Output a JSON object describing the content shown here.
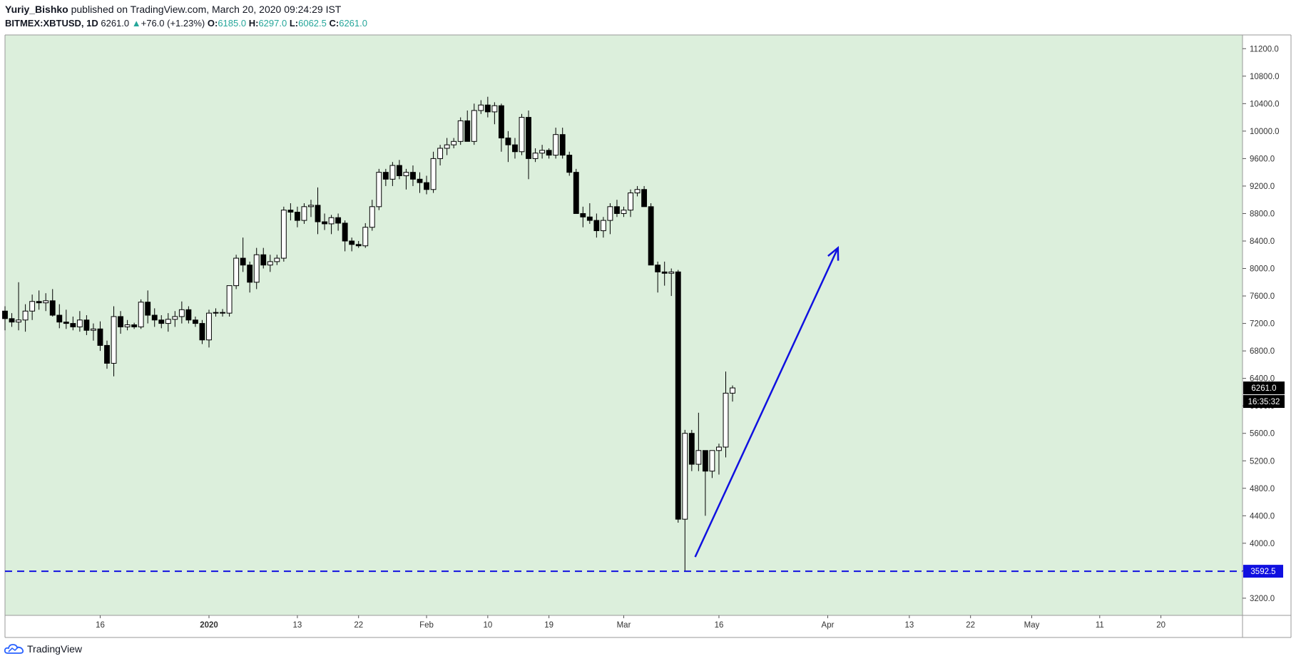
{
  "header": {
    "author": "Yuriy_Bishko",
    "published_text": "published on TradingView.com, March 20, 2020 09:24:29 IST",
    "symbol": "BITMEX:XBTUSD, 1D",
    "last": "6261.0",
    "arrow": "▲",
    "change": "+76.0 (+1.23%)",
    "o_label": "O:",
    "o_value": "6185.0",
    "h_label": "H:",
    "h_value": "6297.0",
    "l_label": "L:",
    "l_value": "6062.5",
    "c_label": "C:",
    "c_value": "6261.0"
  },
  "footer": {
    "brand": "TradingView",
    "logo_icon": "tradingview-cloud-icon"
  },
  "colors": {
    "background": "#dcefdc",
    "bull": "#ffffff",
    "bear": "#000000",
    "support": "#1010e0",
    "arrow": "#1010e0",
    "price_label": "#000000"
  },
  "chart_data": {
    "type": "candlestick",
    "symbol": "BITMEX:XBTUSD",
    "interval": "1D",
    "y_ticks": [
      "3200.0",
      "3600.0",
      "4000.0",
      "4400.0",
      "4800.0",
      "5200.0",
      "5600.0",
      "6000.0",
      "6400.0",
      "6800.0",
      "7200.0",
      "7600.0",
      "8000.0",
      "8400.0",
      "8800.0",
      "9200.0",
      "9600.0",
      "10000.0",
      "10400.0",
      "10800.0",
      "11200.0"
    ],
    "ylim": [
      2950,
      11400
    ],
    "x_tick_labels": [
      "16",
      "2020",
      "13",
      "22",
      "Feb",
      "10",
      "19",
      "Mar",
      "16",
      "Apr",
      "13",
      "22",
      "May",
      "11",
      "20"
    ],
    "x_ticks_day_index": [
      0,
      16,
      29,
      38,
      48,
      57,
      66,
      77,
      91,
      107,
      119,
      128,
      137,
      147,
      156
    ],
    "x_range_day_index": [
      -14,
      168
    ],
    "candles": [
      {
        "d": -14,
        "o": 7380,
        "h": 7450,
        "l": 7100,
        "c": 7270
      },
      {
        "d": -13,
        "o": 7270,
        "h": 7350,
        "l": 7150,
        "c": 7220
      },
      {
        "d": -12,
        "o": 7220,
        "h": 7800,
        "l": 7100,
        "c": 7250
      },
      {
        "d": -11,
        "o": 7250,
        "h": 7480,
        "l": 7080,
        "c": 7380
      },
      {
        "d": -10,
        "o": 7380,
        "h": 7620,
        "l": 7250,
        "c": 7520
      },
      {
        "d": -9,
        "o": 7520,
        "h": 7680,
        "l": 7400,
        "c": 7500
      },
      {
        "d": -8,
        "o": 7500,
        "h": 7640,
        "l": 7380,
        "c": 7530
      },
      {
        "d": -7,
        "o": 7530,
        "h": 7700,
        "l": 7300,
        "c": 7320
      },
      {
        "d": -6,
        "o": 7320,
        "h": 7480,
        "l": 7130,
        "c": 7220
      },
      {
        "d": -5,
        "o": 7220,
        "h": 7400,
        "l": 7120,
        "c": 7200
      },
      {
        "d": -4,
        "o": 7200,
        "h": 7300,
        "l": 7100,
        "c": 7150
      },
      {
        "d": -3,
        "o": 7150,
        "h": 7380,
        "l": 7080,
        "c": 7250
      },
      {
        "d": -2,
        "o": 7250,
        "h": 7320,
        "l": 7030,
        "c": 7100
      },
      {
        "d": -1,
        "o": 7100,
        "h": 7200,
        "l": 6950,
        "c": 7120
      },
      {
        "d": 0,
        "o": 7120,
        "h": 7230,
        "l": 6800,
        "c": 6880
      },
      {
        "d": 1,
        "o": 6880,
        "h": 6950,
        "l": 6540,
        "c": 6620
      },
      {
        "d": 2,
        "o": 6620,
        "h": 7450,
        "l": 6430,
        "c": 7300
      },
      {
        "d": 3,
        "o": 7300,
        "h": 7380,
        "l": 7050,
        "c": 7150
      },
      {
        "d": 4,
        "o": 7150,
        "h": 7250,
        "l": 7100,
        "c": 7180
      },
      {
        "d": 5,
        "o": 7180,
        "h": 7210,
        "l": 7120,
        "c": 7150
      },
      {
        "d": 6,
        "o": 7150,
        "h": 7550,
        "l": 7120,
        "c": 7510
      },
      {
        "d": 7,
        "o": 7510,
        "h": 7680,
        "l": 7200,
        "c": 7320
      },
      {
        "d": 8,
        "o": 7320,
        "h": 7420,
        "l": 7150,
        "c": 7250
      },
      {
        "d": 9,
        "o": 7250,
        "h": 7320,
        "l": 7130,
        "c": 7200
      },
      {
        "d": 10,
        "o": 7200,
        "h": 7350,
        "l": 7080,
        "c": 7260
      },
      {
        "d": 11,
        "o": 7260,
        "h": 7380,
        "l": 7150,
        "c": 7300
      },
      {
        "d": 12,
        "o": 7300,
        "h": 7520,
        "l": 7200,
        "c": 7400
      },
      {
        "d": 13,
        "o": 7400,
        "h": 7450,
        "l": 7200,
        "c": 7250
      },
      {
        "d": 14,
        "o": 7250,
        "h": 7300,
        "l": 7150,
        "c": 7200
      },
      {
        "d": 15,
        "o": 7200,
        "h": 7250,
        "l": 6900,
        "c": 6960
      },
      {
        "d": 16,
        "o": 6960,
        "h": 7400,
        "l": 6850,
        "c": 7350
      },
      {
        "d": 17,
        "o": 7350,
        "h": 7420,
        "l": 7300,
        "c": 7360
      },
      {
        "d": 18,
        "o": 7360,
        "h": 7410,
        "l": 7300,
        "c": 7350
      },
      {
        "d": 19,
        "o": 7350,
        "h": 7750,
        "l": 7300,
        "c": 7750
      },
      {
        "d": 20,
        "o": 7750,
        "h": 8200,
        "l": 7700,
        "c": 8150
      },
      {
        "d": 21,
        "o": 8150,
        "h": 8450,
        "l": 7950,
        "c": 8050
      },
      {
        "d": 22,
        "o": 8050,
        "h": 8100,
        "l": 7650,
        "c": 7800
      },
      {
        "d": 23,
        "o": 7800,
        "h": 8300,
        "l": 7700,
        "c": 8200
      },
      {
        "d": 24,
        "o": 8200,
        "h": 8300,
        "l": 8000,
        "c": 8050
      },
      {
        "d": 25,
        "o": 8050,
        "h": 8200,
        "l": 7950,
        "c": 8100
      },
      {
        "d": 26,
        "o": 8100,
        "h": 8200,
        "l": 8050,
        "c": 8150
      },
      {
        "d": 27,
        "o": 8150,
        "h": 8900,
        "l": 8100,
        "c": 8850
      },
      {
        "d": 28,
        "o": 8850,
        "h": 8950,
        "l": 8700,
        "c": 8820
      },
      {
        "d": 29,
        "o": 8820,
        "h": 8900,
        "l": 8600,
        "c": 8700
      },
      {
        "d": 30,
        "o": 8700,
        "h": 8950,
        "l": 8650,
        "c": 8900
      },
      {
        "d": 31,
        "o": 8900,
        "h": 9000,
        "l": 8750,
        "c": 8920
      },
      {
        "d": 32,
        "o": 8920,
        "h": 9180,
        "l": 8500,
        "c": 8680
      },
      {
        "d": 33,
        "o": 8680,
        "h": 8800,
        "l": 8560,
        "c": 8650
      },
      {
        "d": 34,
        "o": 8650,
        "h": 8780,
        "l": 8500,
        "c": 8740
      },
      {
        "d": 35,
        "o": 8740,
        "h": 8800,
        "l": 8550,
        "c": 8660
      },
      {
        "d": 36,
        "o": 8660,
        "h": 8700,
        "l": 8250,
        "c": 8400
      },
      {
        "d": 37,
        "o": 8400,
        "h": 8450,
        "l": 8250,
        "c": 8350
      },
      {
        "d": 38,
        "o": 8350,
        "h": 8400,
        "l": 8300,
        "c": 8330
      },
      {
        "d": 39,
        "o": 8330,
        "h": 8660,
        "l": 8300,
        "c": 8600
      },
      {
        "d": 40,
        "o": 8600,
        "h": 9000,
        "l": 8550,
        "c": 8900
      },
      {
        "d": 41,
        "o": 8900,
        "h": 9450,
        "l": 8850,
        "c": 9400
      },
      {
        "d": 42,
        "o": 9400,
        "h": 9450,
        "l": 9200,
        "c": 9300
      },
      {
        "d": 43,
        "o": 9300,
        "h": 9550,
        "l": 9200,
        "c": 9500
      },
      {
        "d": 44,
        "o": 9500,
        "h": 9580,
        "l": 9300,
        "c": 9350
      },
      {
        "d": 45,
        "o": 9350,
        "h": 9450,
        "l": 9150,
        "c": 9400
      },
      {
        "d": 46,
        "o": 9400,
        "h": 9500,
        "l": 9200,
        "c": 9300
      },
      {
        "d": 47,
        "o": 9300,
        "h": 9400,
        "l": 9100,
        "c": 9250
      },
      {
        "d": 48,
        "o": 9250,
        "h": 9350,
        "l": 9080,
        "c": 9150
      },
      {
        "d": 49,
        "o": 9150,
        "h": 9700,
        "l": 9100,
        "c": 9600
      },
      {
        "d": 50,
        "o": 9600,
        "h": 9800,
        "l": 9500,
        "c": 9750
      },
      {
        "d": 51,
        "o": 9750,
        "h": 9900,
        "l": 9650,
        "c": 9800
      },
      {
        "d": 52,
        "o": 9800,
        "h": 9900,
        "l": 9750,
        "c": 9850
      },
      {
        "d": 53,
        "o": 9850,
        "h": 10200,
        "l": 9800,
        "c": 10150
      },
      {
        "d": 54,
        "o": 10150,
        "h": 10300,
        "l": 9850,
        "c": 9850
      },
      {
        "d": 55,
        "o": 9850,
        "h": 10400,
        "l": 9800,
        "c": 10300
      },
      {
        "d": 56,
        "o": 10300,
        "h": 10450,
        "l": 10250,
        "c": 10380
      },
      {
        "d": 57,
        "o": 10380,
        "h": 10500,
        "l": 10200,
        "c": 10280
      },
      {
        "d": 58,
        "o": 10280,
        "h": 10420,
        "l": 10100,
        "c": 10370
      },
      {
        "d": 59,
        "o": 10370,
        "h": 10400,
        "l": 9700,
        "c": 9900
      },
      {
        "d": 60,
        "o": 9900,
        "h": 10000,
        "l": 9550,
        "c": 9800
      },
      {
        "d": 61,
        "o": 9800,
        "h": 9900,
        "l": 9600,
        "c": 9700
      },
      {
        "d": 62,
        "o": 9700,
        "h": 10250,
        "l": 9650,
        "c": 10200
      },
      {
        "d": 63,
        "o": 10200,
        "h": 10300,
        "l": 9300,
        "c": 9600
      },
      {
        "d": 64,
        "o": 9600,
        "h": 9750,
        "l": 9550,
        "c": 9680
      },
      {
        "d": 65,
        "o": 9680,
        "h": 9800,
        "l": 9600,
        "c": 9720
      },
      {
        "d": 66,
        "o": 9720,
        "h": 9750,
        "l": 9600,
        "c": 9650
      },
      {
        "d": 67,
        "o": 9650,
        "h": 10050,
        "l": 9600,
        "c": 9950
      },
      {
        "d": 68,
        "o": 9950,
        "h": 10050,
        "l": 9600,
        "c": 9650
      },
      {
        "d": 69,
        "o": 9650,
        "h": 9700,
        "l": 9350,
        "c": 9400
      },
      {
        "d": 70,
        "o": 9400,
        "h": 9450,
        "l": 8800,
        "c": 8800
      },
      {
        "d": 71,
        "o": 8800,
        "h": 8900,
        "l": 8600,
        "c": 8750
      },
      {
        "d": 72,
        "o": 8750,
        "h": 8950,
        "l": 8650,
        "c": 8700
      },
      {
        "d": 73,
        "o": 8700,
        "h": 8800,
        "l": 8450,
        "c": 8550
      },
      {
        "d": 74,
        "o": 8550,
        "h": 8750,
        "l": 8450,
        "c": 8700
      },
      {
        "d": 75,
        "o": 8700,
        "h": 8950,
        "l": 8500,
        "c": 8900
      },
      {
        "d": 76,
        "o": 8900,
        "h": 9000,
        "l": 8750,
        "c": 8800
      },
      {
        "d": 77,
        "o": 8800,
        "h": 8900,
        "l": 8750,
        "c": 8850
      },
      {
        "d": 78,
        "o": 8850,
        "h": 9150,
        "l": 8750,
        "c": 9100
      },
      {
        "d": 79,
        "o": 9100,
        "h": 9200,
        "l": 9050,
        "c": 9150
      },
      {
        "d": 80,
        "o": 9150,
        "h": 9200,
        "l": 8900,
        "c": 8900
      },
      {
        "d": 81,
        "o": 8900,
        "h": 8950,
        "l": 8050,
        "c": 8050
      },
      {
        "d": 82,
        "o": 8050,
        "h": 8100,
        "l": 7650,
        "c": 7950
      },
      {
        "d": 83,
        "o": 7950,
        "h": 8100,
        "l": 7750,
        "c": 7930
      },
      {
        "d": 84,
        "o": 7930,
        "h": 8000,
        "l": 7600,
        "c": 7950
      },
      {
        "d": 85,
        "o": 7950,
        "h": 7980,
        "l": 4300,
        "c": 4350
      },
      {
        "d": 86,
        "o": 4350,
        "h": 5650,
        "l": 3592.5,
        "c": 5600
      },
      {
        "d": 87,
        "o": 5600,
        "h": 5650,
        "l": 5050,
        "c": 5150
      },
      {
        "d": 88,
        "o": 5150,
        "h": 5900,
        "l": 5050,
        "c": 5350
      },
      {
        "d": 89,
        "o": 5350,
        "h": 5350,
        "l": 4400,
        "c": 5050
      },
      {
        "d": 90,
        "o": 5050,
        "h": 5350,
        "l": 4950,
        "c": 5350
      },
      {
        "d": 91,
        "o": 5350,
        "h": 5450,
        "l": 5000,
        "c": 5400
      },
      {
        "d": 92,
        "o": 5400,
        "h": 6500,
        "l": 5250,
        "c": 6185
      },
      {
        "d": 93,
        "o": 6185,
        "h": 6297,
        "l": 6062.5,
        "c": 6261
      }
    ],
    "price_label": "6261.0",
    "countdown_label": "16:35:32",
    "support_level": 3592.5,
    "support_label": "3592.5",
    "arrow": {
      "from_day": 87.5,
      "from_price": 3800,
      "to_day": 108.5,
      "to_price": 8300
    }
  }
}
